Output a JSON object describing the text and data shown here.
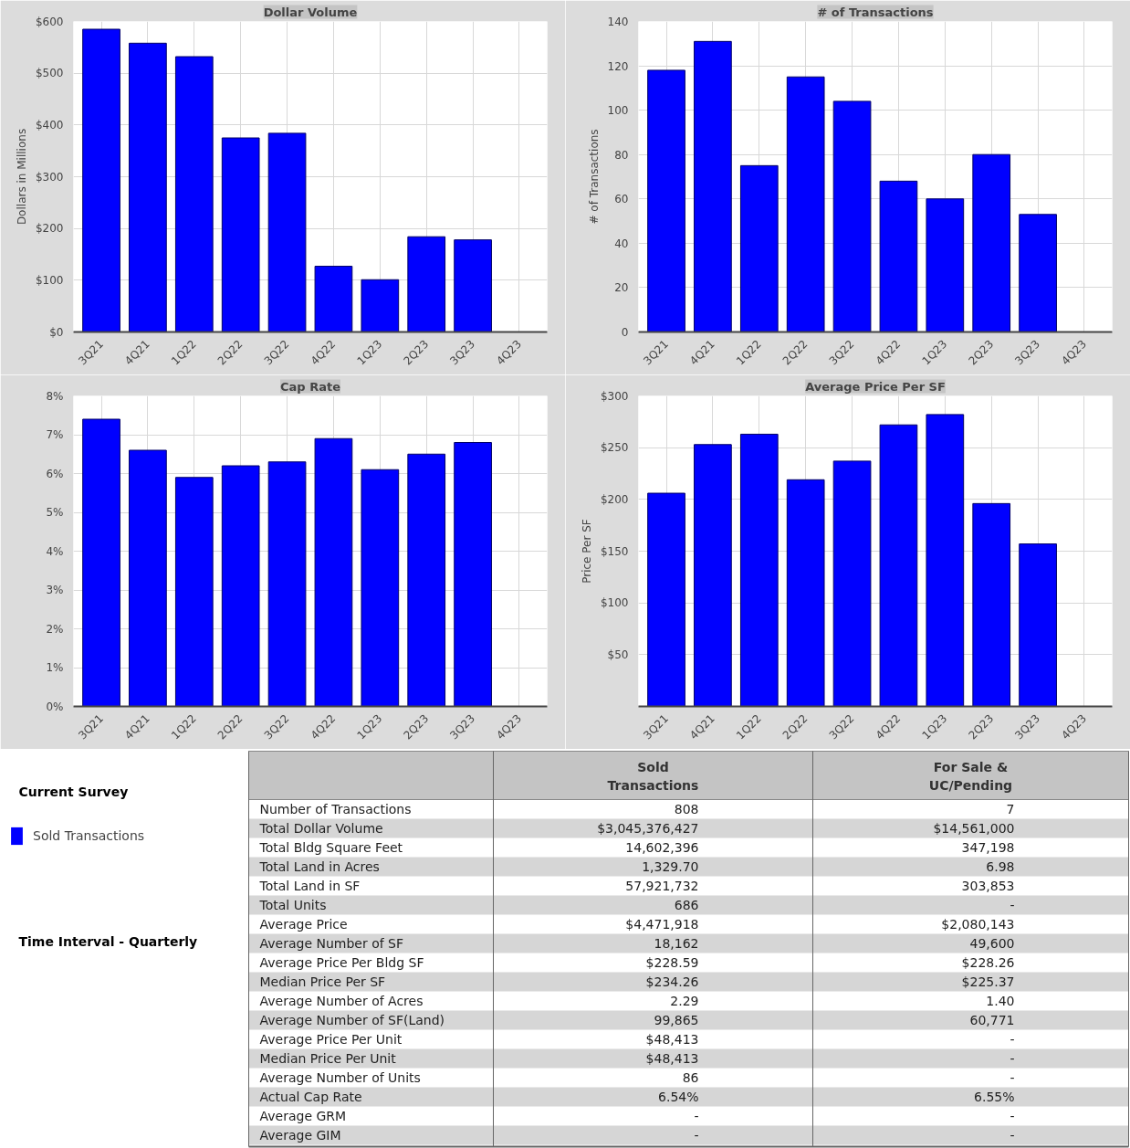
{
  "chart_data": [
    {
      "type": "bar",
      "title": "Dollar Volume",
      "ylabel": "Dollars in Millions",
      "categories": [
        "3Q21",
        "4Q21",
        "1Q22",
        "2Q22",
        "3Q22",
        "4Q22",
        "1Q23",
        "2Q23",
        "3Q23",
        "4Q23"
      ],
      "series": [
        {
          "color": "#0000ff",
          "values": [
            585,
            558,
            532,
            375,
            384,
            127,
            101,
            184,
            178,
            null
          ]
        }
      ],
      "ylim": [
        0,
        600
      ],
      "yticks": [
        {
          "value": 0,
          "label": "$0"
        },
        {
          "value": 100,
          "label": "$100"
        },
        {
          "value": 200,
          "label": "$200"
        },
        {
          "value": 300,
          "label": "$300"
        },
        {
          "value": 400,
          "label": "$400"
        },
        {
          "value": 500,
          "label": "$500"
        },
        {
          "value": 600,
          "label": "$600"
        }
      ],
      "grid": true
    },
    {
      "type": "bar",
      "title": "# of Transactions",
      "ylabel": "# of Transactions",
      "categories": [
        "3Q21",
        "4Q21",
        "1Q22",
        "2Q22",
        "3Q22",
        "4Q22",
        "1Q23",
        "2Q23",
        "3Q23",
        "4Q23"
      ],
      "series": [
        {
          "color": "#0000ff",
          "values": [
            118,
            131,
            75,
            115,
            104,
            68,
            60,
            80,
            53,
            null
          ]
        }
      ],
      "ylim": [
        0,
        140
      ],
      "yticks": [
        0,
        20,
        40,
        60,
        80,
        100,
        120,
        140
      ],
      "grid": true
    },
    {
      "type": "bar",
      "title": "Cap Rate",
      "categories": [
        "3Q21",
        "4Q21",
        "1Q22",
        "2Q22",
        "3Q22",
        "4Q22",
        "1Q23",
        "2Q23",
        "3Q23",
        "4Q23"
      ],
      "series": [
        {
          "color": "#0000ff",
          "values": [
            7.4,
            6.6,
            5.9,
            6.2,
            6.3,
            6.9,
            6.1,
            6.5,
            6.8,
            null
          ]
        }
      ],
      "ylim": [
        0,
        8
      ],
      "yticks": [
        {
          "value": 0,
          "label": "0%"
        },
        {
          "value": 1,
          "label": "1%"
        },
        {
          "value": 2,
          "label": "2%"
        },
        {
          "value": 3,
          "label": "3%"
        },
        {
          "value": 4,
          "label": "4%"
        },
        {
          "value": 5,
          "label": "5%"
        },
        {
          "value": 6,
          "label": "6%"
        },
        {
          "value": 7,
          "label": "7%"
        },
        {
          "value": 8,
          "label": "8%"
        }
      ],
      "grid": true
    },
    {
      "type": "bar",
      "title": "Average Price Per SF",
      "ylabel": "Price Per SF",
      "categories": [
        "3Q21",
        "4Q21",
        "1Q22",
        "2Q22",
        "3Q22",
        "4Q22",
        "1Q23",
        "2Q23",
        "3Q23",
        "4Q23"
      ],
      "series": [
        {
          "color": "#0000ff",
          "values": [
            206,
            253,
            263,
            219,
            237,
            272,
            282,
            196,
            157,
            null
          ]
        }
      ],
      "ylim": [
        0,
        300
      ],
      "yticks": [
        {
          "value": 50,
          "label": "$50"
        },
        {
          "value": 100,
          "label": "$100"
        },
        {
          "value": 150,
          "label": "$150"
        },
        {
          "value": 200,
          "label": "$200"
        },
        {
          "value": 250,
          "label": "$250"
        },
        {
          "value": 300,
          "label": "$300"
        }
      ],
      "grid": true
    },
    {
      "type": "other",
      "title": "Current Survey",
      "series": [
        {
          "name": "Sold Transactions",
          "color": "#0000ff"
        }
      ],
      "annotations": [
        "Time Interval - Quarterly"
      ]
    },
    {
      "type": "other",
      "categories": [
        "Sold Transactions",
        "For Sale & UC/Pending"
      ],
      "y_categories": [
        "Number of Transactions",
        "Total Dollar Volume",
        "Total Bldg Square Feet",
        "Total Land in Acres",
        "Total Land in SF",
        "Total Units",
        "Average Price",
        "Average Number of SF",
        "Average Price Per Bldg SF",
        "Median Price Per SF",
        "Average Number of Acres",
        "Average Number of SF(Land)",
        "Average Price Per Unit",
        "Median Price Per Unit",
        "Average Number of Units",
        "Actual Cap Rate",
        "Average GRM",
        "Average GIM"
      ],
      "cell_labels": [
        [
          "808",
          "7"
        ],
        [
          "$3,045,376,427",
          "$14,561,000"
        ],
        [
          "14,602,396",
          "347,198"
        ],
        [
          "1,329.70",
          "6.98"
        ],
        [
          "57,921,732",
          "303,853"
        ],
        [
          "686",
          "-"
        ],
        [
          "$4,471,918",
          "$2,080,143"
        ],
        [
          "18,162",
          "49,600"
        ],
        [
          "$228.59",
          "$228.26"
        ],
        [
          "$234.26",
          "$225.37"
        ],
        [
          "2.29",
          "1.40"
        ],
        [
          "99,865",
          "60,771"
        ],
        [
          "$48,413",
          "-"
        ],
        [
          "$48,413",
          "-"
        ],
        [
          "86",
          "-"
        ],
        [
          "6.54%",
          "6.55%"
        ],
        [
          "-",
          "-"
        ],
        [
          "-",
          "-"
        ]
      ]
    }
  ]
}
